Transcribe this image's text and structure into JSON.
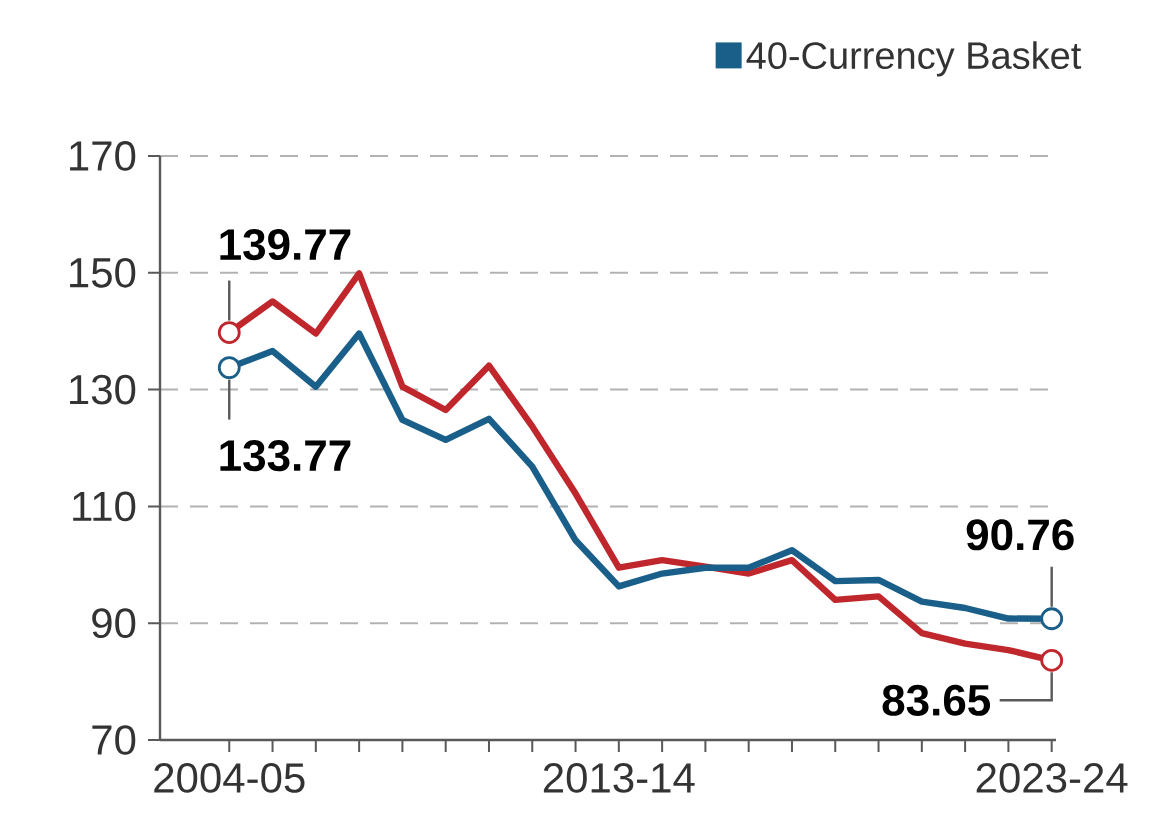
{
  "chart_data": {
    "type": "line",
    "categories": [
      "2004-05",
      null,
      null,
      null,
      null,
      null,
      null,
      null,
      null,
      "2013-14",
      null,
      null,
      null,
      null,
      null,
      null,
      null,
      null,
      null,
      "2023-24"
    ],
    "series": [
      {
        "color": "#c0272d",
        "values": [
          139.77,
          145.1,
          139.6,
          149.9,
          130.5,
          126.5,
          134.1,
          123.7,
          112.2,
          99.5,
          100.8,
          99.7,
          98.5,
          100.8,
          94.0,
          94.6,
          88.3,
          86.5,
          85.4,
          83.65
        ],
        "value_labels": [
          "139.77",
          null,
          null,
          null,
          null,
          null,
          null,
          null,
          null,
          null,
          null,
          null,
          null,
          null,
          null,
          null,
          null,
          null,
          null,
          "83.65"
        ]
      },
      {
        "name": "40-Currency Basket",
        "color": "#1a5f8a",
        "values": [
          133.77,
          136.6,
          130.5,
          139.6,
          124.8,
          121.4,
          125.0,
          116.8,
          104.2,
          96.3,
          98.5,
          99.5,
          99.5,
          102.5,
          97.2,
          97.4,
          93.7,
          92.6,
          90.8,
          90.76
        ],
        "value_labels": [
          "133.77",
          null,
          null,
          null,
          null,
          null,
          null,
          null,
          null,
          null,
          null,
          null,
          null,
          null,
          null,
          null,
          null,
          null,
          null,
          "90.76"
        ]
      }
    ],
    "ylim": [
      70,
      170
    ],
    "yticks": [
      70,
      90,
      110,
      130,
      150,
      170
    ],
    "grid": "y",
    "legend": "top right",
    "line_style": "solid"
  }
}
